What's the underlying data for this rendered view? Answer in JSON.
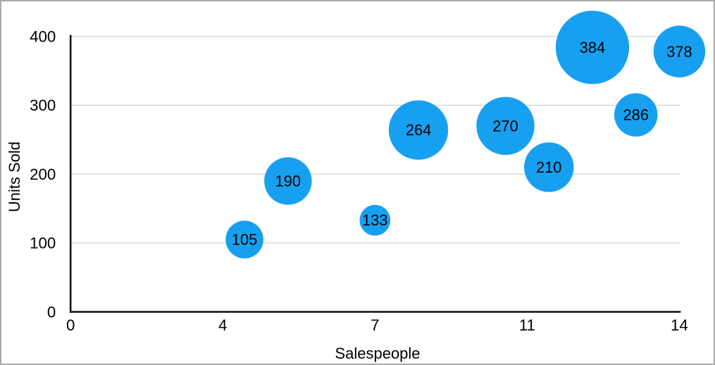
{
  "chart_data": {
    "type": "scatter",
    "subtype": "bubble",
    "title": "",
    "xlabel": "Salespeople",
    "ylabel": "Units Sold",
    "xlim": [
      0,
      14
    ],
    "ylim": [
      0,
      400
    ],
    "x_tick_labels": [
      "0",
      "4",
      "7",
      "11",
      "14"
    ],
    "y_tick_labels": [
      "0",
      "100",
      "200",
      "300",
      "400"
    ],
    "grid": "horizontal",
    "legend": "none",
    "points": [
      {
        "x": 4,
        "y": 105,
        "label": "105",
        "radius_px": 27
      },
      {
        "x": 5,
        "y": 190,
        "label": "190",
        "radius_px": 34
      },
      {
        "x": 7,
        "y": 133,
        "label": "133",
        "radius_px": 22
      },
      {
        "x": 8,
        "y": 264,
        "label": "264",
        "radius_px": 42.5
      },
      {
        "x": 10,
        "y": 270,
        "label": "270",
        "radius_px": 41.5
      },
      {
        "x": 11,
        "y": 210,
        "label": "210",
        "radius_px": 35.5
      },
      {
        "x": 12,
        "y": 384,
        "label": "384",
        "radius_px": 52.5
      },
      {
        "x": 13,
        "y": 286,
        "label": "286",
        "radius_px": 31
      },
      {
        "x": 14,
        "y": 378,
        "label": "378",
        "radius_px": 37
      }
    ],
    "colors": {
      "bubble": "#18A0F0",
      "bubble_label": "#000000",
      "axis": "#000000",
      "gridline": "#D2D2D2",
      "tick_label": "#000000",
      "axis_title": "#000000",
      "border": "#A9A9A9",
      "background": "#FFFFFF"
    }
  }
}
